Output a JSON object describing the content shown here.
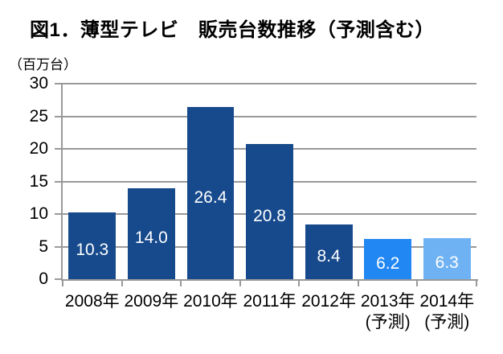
{
  "chart_data": {
    "type": "bar",
    "title": "図1．薄型テレビ　販売台数推移（予測含む）",
    "unit_label": "（百万台）",
    "categories": [
      "2008年",
      "2009年",
      "2010年",
      "2011年",
      "2012年",
      "2013年",
      "2014年"
    ],
    "category_sublabels": [
      "",
      "",
      "",
      "",
      "",
      "(予測)",
      "(予測)"
    ],
    "values": [
      10.3,
      14.0,
      26.4,
      20.8,
      8.4,
      6.2,
      6.3
    ],
    "value_labels": [
      "10.3",
      "14.0",
      "26.4",
      "20.8",
      "8.4",
      "6.2",
      "6.3"
    ],
    "bar_colors": [
      "#174A8C",
      "#174A8C",
      "#174A8C",
      "#174A8C",
      "#174A8C",
      "#2187F2",
      "#6FB2F4"
    ],
    "ylim": [
      0,
      30
    ],
    "yticks": [
      0,
      5,
      10,
      15,
      20,
      25,
      30
    ],
    "grid": true,
    "legend": "none",
    "colors": {
      "bar_actual": "#174A8C",
      "bar_forecast_2013": "#2187F2",
      "bar_forecast_2014": "#6FB2F4",
      "gridline": "#999999",
      "axis_line": "#999999",
      "value_label_text": "#FFFFFF",
      "axis_text": "#000000"
    }
  }
}
